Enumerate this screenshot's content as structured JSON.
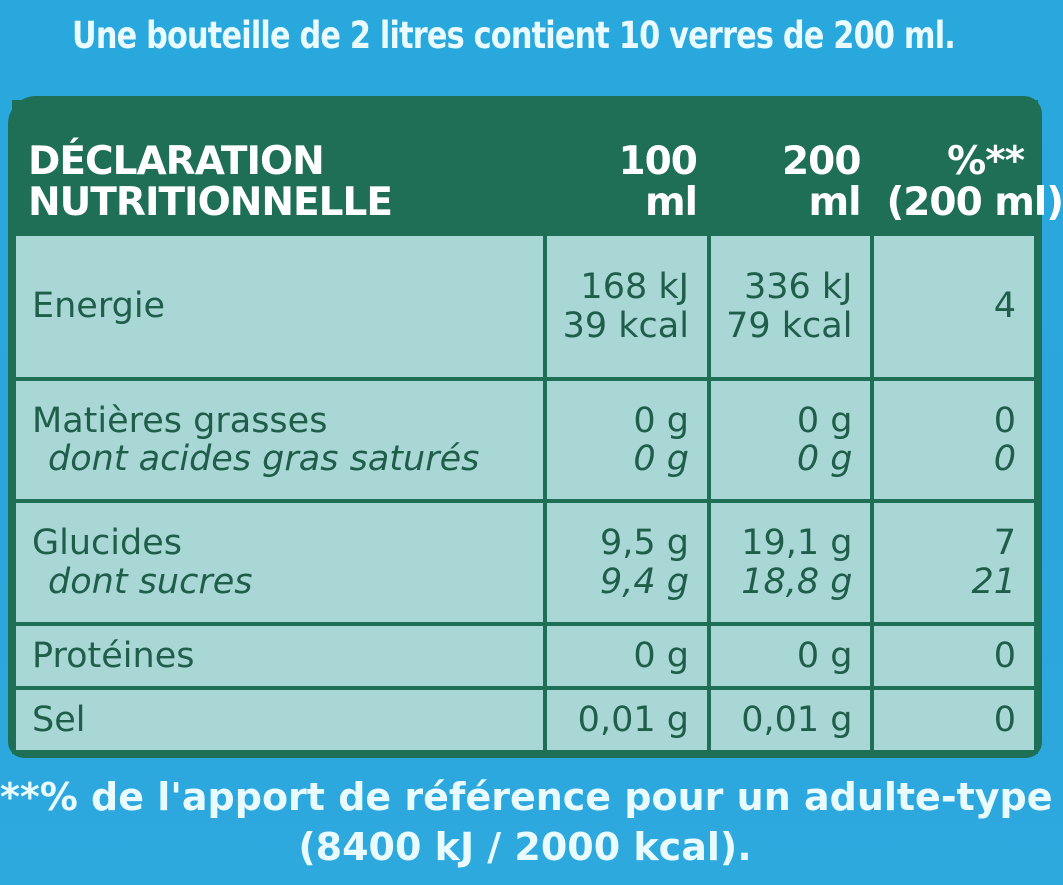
{
  "header_line": "Une bouteille de 2 litres contient 10 verres de 200 ml.",
  "table": {
    "header": {
      "col1_line1": "DÉCLARATION",
      "col1_line2": "NUTRITIONNELLE",
      "col2": "100 ml",
      "col3": "200 ml",
      "col4_line1": "%**",
      "col4_line2": "(200 ml)"
    },
    "rows": [
      {
        "label": "Energie",
        "v100_line1": "168 kJ",
        "v100_line2": "39 kcal",
        "v200_line1": "336 kJ",
        "v200_line2": "79 kcal",
        "pct": "4"
      },
      {
        "label": "Matières grasses",
        "sublabel": "dont acides gras saturés",
        "v100": "0 g",
        "v100_sub": "0 g",
        "v200": "0 g",
        "v200_sub": "0 g",
        "pct": "0",
        "pct_sub": "0"
      },
      {
        "label": "Glucides",
        "sublabel": "dont sucres",
        "v100": "9,5 g",
        "v100_sub": "9,4 g",
        "v200": "19,1 g",
        "v200_sub": "18,8 g",
        "pct": "7",
        "pct_sub": "21"
      },
      {
        "label": "Protéines",
        "v100": "0 g",
        "v200": "0 g",
        "pct": "0"
      },
      {
        "label": "Sel",
        "v100": "0,01 g",
        "v200": "0,01 g",
        "pct": "0"
      }
    ]
  },
  "footer": {
    "line1": "**% de l'apport de référence pour un adulte-type",
    "line2": "(8400 kJ / 2000 kcal)."
  }
}
